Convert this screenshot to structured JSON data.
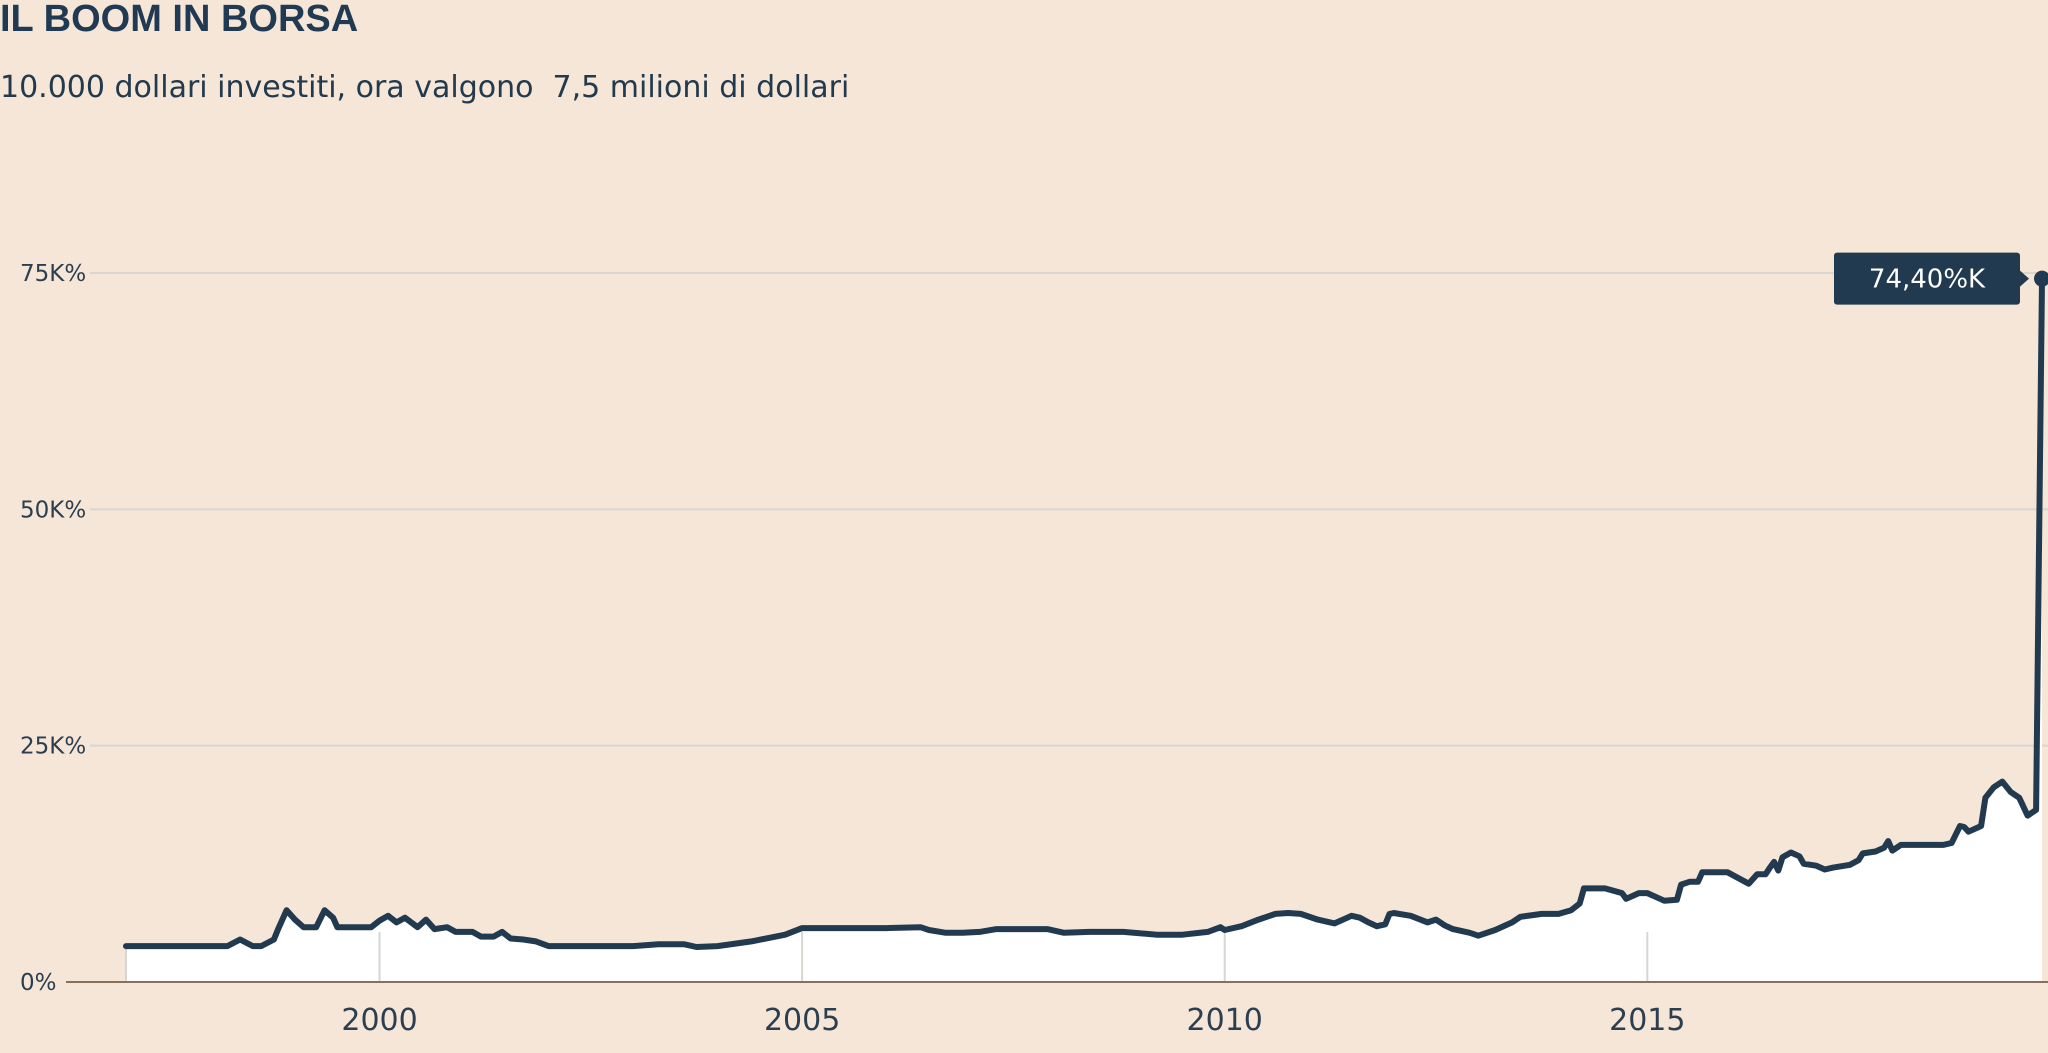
{
  "header": {
    "title": "IL BOOM IN BORSA",
    "subtitle": "10.000 dollari investiti, ora valgono  7,5 milioni di dollari"
  },
  "colors": {
    "background": "#f5e6d8",
    "line": "#213a4f",
    "area": "#ffffff",
    "grid": "#d9d5d0",
    "baseline": "#8c6e5a",
    "label_bg": "#213a4f"
  },
  "chart_data": {
    "type": "area",
    "title": "IL BOOM IN BORSA",
    "subtitle": "10.000 dollari investiti, ora valgono  7,5 milioni di dollari",
    "xlabel": "",
    "ylabel": "",
    "xlim": [
      1997.0,
      2019.67
    ],
    "ylim": [
      0,
      75000
    ],
    "yticks": [
      0,
      25000,
      50000,
      75000
    ],
    "ytick_labels": [
      "0%",
      "25K%",
      "50K%",
      "75K%"
    ],
    "xticks": [
      2000,
      2005,
      2010,
      2015
    ],
    "xtick_labels": [
      "2000",
      "2005",
      "2010",
      "2015"
    ],
    "grid": true,
    "end_label": "74,40%K",
    "series": [
      {
        "values": [
          [
            1997.0,
            3800
          ],
          [
            1998.2,
            3800
          ],
          [
            1998.35,
            4500
          ],
          [
            1998.5,
            3800
          ],
          [
            1998.6,
            3800
          ],
          [
            1998.75,
            4500
          ],
          [
            1998.8,
            5600
          ],
          [
            1998.9,
            7600
          ],
          [
            1999.0,
            6600
          ],
          [
            1999.1,
            5800
          ],
          [
            1999.25,
            5800
          ],
          [
            1999.35,
            7600
          ],
          [
            1999.45,
            6800
          ],
          [
            1999.5,
            5800
          ],
          [
            1999.7,
            5800
          ],
          [
            1999.9,
            5800
          ],
          [
            2000.0,
            6500
          ],
          [
            2000.1,
            7000
          ],
          [
            2000.2,
            6300
          ],
          [
            2000.3,
            6800
          ],
          [
            2000.45,
            5800
          ],
          [
            2000.55,
            6600
          ],
          [
            2000.65,
            5600
          ],
          [
            2000.8,
            5800
          ],
          [
            2000.9,
            5300
          ],
          [
            2001.1,
            5300
          ],
          [
            2001.2,
            4800
          ],
          [
            2001.35,
            4800
          ],
          [
            2001.45,
            5300
          ],
          [
            2001.55,
            4600
          ],
          [
            2001.7,
            4500
          ],
          [
            2001.85,
            4300
          ],
          [
            2002.0,
            3800
          ],
          [
            2002.5,
            3800
          ],
          [
            2003.0,
            3800
          ],
          [
            2003.3,
            4000
          ],
          [
            2003.6,
            4000
          ],
          [
            2003.75,
            3700
          ],
          [
            2004.0,
            3800
          ],
          [
            2004.4,
            4300
          ],
          [
            2004.8,
            5000
          ],
          [
            2005.0,
            5700
          ],
          [
            2005.5,
            5700
          ],
          [
            2006.0,
            5700
          ],
          [
            2006.4,
            5800
          ],
          [
            2006.5,
            5500
          ],
          [
            2006.7,
            5200
          ],
          [
            2006.9,
            5200
          ],
          [
            2007.1,
            5300
          ],
          [
            2007.3,
            5600
          ],
          [
            2007.6,
            5600
          ],
          [
            2007.9,
            5600
          ],
          [
            2008.1,
            5200
          ],
          [
            2008.4,
            5300
          ],
          [
            2008.8,
            5300
          ],
          [
            2009.2,
            5000
          ],
          [
            2009.5,
            5000
          ],
          [
            2009.8,
            5300
          ],
          [
            2009.95,
            5800
          ],
          [
            2010.0,
            5500
          ],
          [
            2010.2,
            5900
          ],
          [
            2010.4,
            6600
          ],
          [
            2010.6,
            7200
          ],
          [
            2010.75,
            7300
          ],
          [
            2010.9,
            7200
          ],
          [
            2011.1,
            6600
          ],
          [
            2011.3,
            6200
          ],
          [
            2011.5,
            7000
          ],
          [
            2011.6,
            6800
          ],
          [
            2011.7,
            6300
          ],
          [
            2011.8,
            5900
          ],
          [
            2011.9,
            6100
          ],
          [
            2011.95,
            7200
          ],
          [
            2012.0,
            7300
          ],
          [
            2012.2,
            7000
          ],
          [
            2012.4,
            6300
          ],
          [
            2012.5,
            6600
          ],
          [
            2012.6,
            6000
          ],
          [
            2012.7,
            5600
          ],
          [
            2012.9,
            5200
          ],
          [
            2013.0,
            4900
          ],
          [
            2013.2,
            5500
          ],
          [
            2013.4,
            6300
          ],
          [
            2013.5,
            6900
          ],
          [
            2013.75,
            7200
          ],
          [
            2013.95,
            7200
          ],
          [
            2014.1,
            7600
          ],
          [
            2014.2,
            8300
          ],
          [
            2014.25,
            9900
          ],
          [
            2014.5,
            9900
          ],
          [
            2014.7,
            9400
          ],
          [
            2014.75,
            8800
          ],
          [
            2014.9,
            9400
          ],
          [
            2015.0,
            9400
          ],
          [
            2015.2,
            8600
          ],
          [
            2015.35,
            8700
          ],
          [
            2015.4,
            10300
          ],
          [
            2015.5,
            10600
          ],
          [
            2015.6,
            10600
          ],
          [
            2015.65,
            11600
          ],
          [
            2015.8,
            11600
          ],
          [
            2015.95,
            11600
          ],
          [
            2016.2,
            10400
          ],
          [
            2016.3,
            11400
          ],
          [
            2016.4,
            11400
          ],
          [
            2016.45,
            12100
          ],
          [
            2016.5,
            12700
          ],
          [
            2016.55,
            11800
          ],
          [
            2016.6,
            13200
          ],
          [
            2016.7,
            13700
          ],
          [
            2016.8,
            13300
          ],
          [
            2016.85,
            12500
          ],
          [
            2017.0,
            12300
          ],
          [
            2017.1,
            11900
          ],
          [
            2017.2,
            12100
          ],
          [
            2017.4,
            12400
          ],
          [
            2017.5,
            12900
          ],
          [
            2017.55,
            13600
          ],
          [
            2017.7,
            13800
          ],
          [
            2017.8,
            14200
          ],
          [
            2017.85,
            14900
          ],
          [
            2017.9,
            13900
          ],
          [
            2018.0,
            14500
          ],
          [
            2018.1,
            14500
          ],
          [
            2018.3,
            14500
          ],
          [
            2018.5,
            14500
          ],
          [
            2018.6,
            14700
          ],
          [
            2018.7,
            16500
          ],
          [
            2018.75,
            16400
          ],
          [
            2018.8,
            15900
          ],
          [
            2018.95,
            16500
          ],
          [
            2019.0,
            19500
          ],
          [
            2019.1,
            20600
          ],
          [
            2019.2,
            21200
          ],
          [
            2019.3,
            20100
          ],
          [
            2019.4,
            19500
          ],
          [
            2019.5,
            17600
          ],
          [
            2019.6,
            18200
          ],
          [
            2019.67,
            74400
          ]
        ]
      }
    ]
  }
}
